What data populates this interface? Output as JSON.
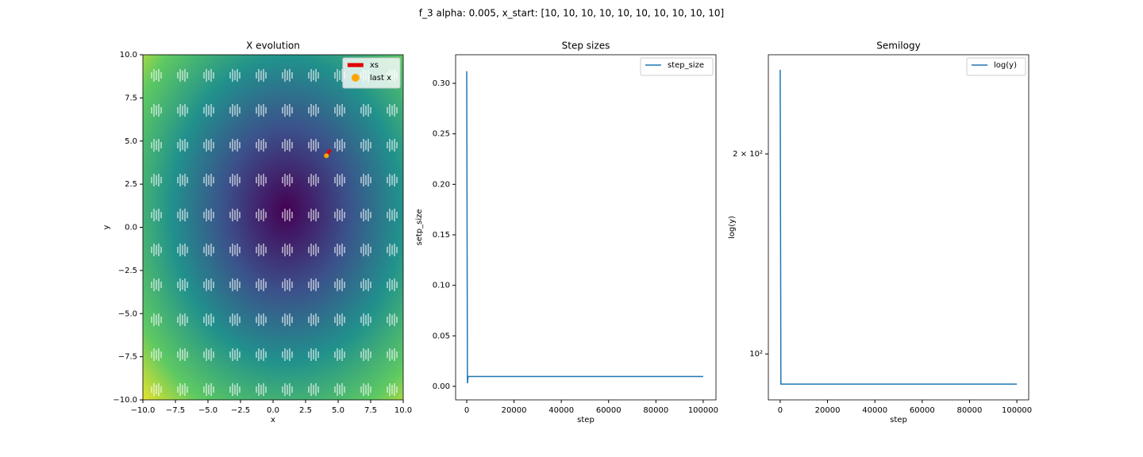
{
  "title": "f_3 alpha: 0.005, x_start: [10, 10, 10, 10, 10, 10, 10, 10, 10, 10]",
  "chart_data": [
    {
      "type": "contour",
      "title": "X evolution",
      "x_label": "x",
      "y_label": "y",
      "xlim": [
        -10,
        10
      ],
      "ylim": [
        -10,
        10
      ],
      "xticks": [
        {
          "value": -10,
          "label": "−10.0"
        },
        {
          "value": -7.5,
          "label": "−7.5"
        },
        {
          "value": -5,
          "label": "−5.0"
        },
        {
          "value": -2.5,
          "label": "−2.5"
        },
        {
          "value": 0,
          "label": "0.0"
        },
        2.5,
        {
          "value": 5,
          "label": "5.0"
        },
        7.5,
        {
          "value": 10,
          "label": "10.0"
        }
      ],
      "yticks": [
        {
          "value": -10,
          "label": "−10.0"
        },
        {
          "value": -7.5,
          "label": "−7.5"
        },
        {
          "value": -5,
          "label": "−5.0"
        },
        {
          "value": -2.5,
          "label": "−2.5"
        },
        {
          "value": 0,
          "label": "0.0"
        },
        2.5,
        {
          "value": 5,
          "label": "5.0"
        },
        7.5,
        {
          "value": 10,
          "label": "10.0"
        }
      ],
      "legend": "upper right",
      "series": [
        {
          "name": "xs",
          "color": "#e00000",
          "kind": "line",
          "x": [
            4.4,
            4.1
          ],
          "values": [
            4.5,
            4.15
          ]
        },
        {
          "name": "last x",
          "color": "#ffa500",
          "kind": "scatter",
          "x": [
            4.1
          ],
          "values": [
            4.15
          ]
        }
      ]
    },
    {
      "type": "line",
      "title": "Step sizes",
      "x_label": "step",
      "y_label": "setp_size",
      "xlim": [
        -4700,
        105400
      ],
      "ylim": [
        -0.0134,
        0.3283
      ],
      "xticks": [
        0,
        20000,
        40000,
        60000,
        80000,
        100000
      ],
      "yticks": [
        {
          "value": 0,
          "label": "0.00"
        },
        0.05,
        {
          "value": 0.1,
          "label": "0.10"
        },
        0.15,
        {
          "value": 0.2,
          "label": "0.20"
        },
        0.25,
        {
          "value": 0.3,
          "label": "0.30"
        }
      ],
      "legend": "upper right",
      "series": [
        {
          "name": "step_size",
          "color": "#1f77b4",
          "kind": "line",
          "x": [
            0,
            300,
            600,
            100000
          ],
          "values": [
            0.312,
            0.003,
            0.0098,
            0.0098
          ]
        }
      ]
    },
    {
      "type": "line",
      "title": "Semilogy",
      "x_label": "step",
      "y_label": "log(y)",
      "ylog": true,
      "xlim": [
        -5000,
        105000
      ],
      "ylim": [
        85.3,
        282
      ],
      "xticks": [
        0,
        20000,
        40000,
        60000,
        80000,
        100000
      ],
      "yticks": [
        {
          "value": 100,
          "label": "10²"
        },
        {
          "value": 200,
          "label": "2 × 10²"
        }
      ],
      "legend": "upper right",
      "series": [
        {
          "name": "log(y)",
          "color": "#1f77b4",
          "kind": "line",
          "x": [
            0,
            300,
            100000
          ],
          "values": [
            267.7,
            90.1,
            90.1
          ]
        }
      ]
    }
  ]
}
